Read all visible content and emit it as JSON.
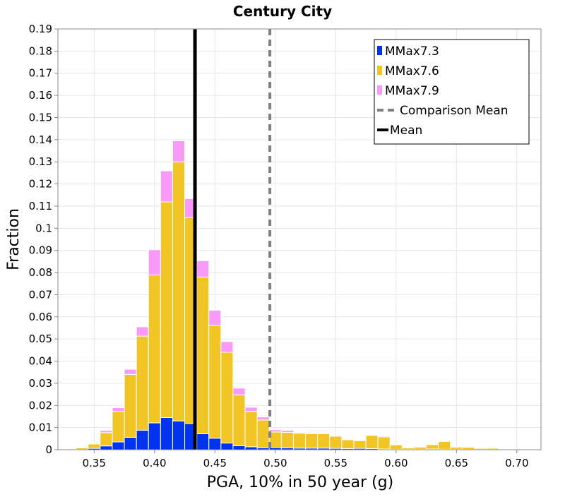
{
  "chart_data": {
    "type": "bar",
    "stacked": true,
    "title": "Century City",
    "xlabel": "PGA, 10% in 50 year (g)",
    "ylabel": "Fraction",
    "xlim": [
      0.32,
      0.72
    ],
    "ylim": [
      0,
      0.19
    ],
    "grid": true,
    "legend_position": "top-right",
    "bin_width": 0.01,
    "x_ticks": [
      "0.35",
      "0.40",
      "0.45",
      "0.50",
      "0.55",
      "0.60",
      "0.65",
      "0.70"
    ],
    "y_ticks": [
      "0",
      "0.01",
      "0.02",
      "0.03",
      "0.04",
      "0.05",
      "0.06",
      "0.07",
      "0.08",
      "0.09",
      "0.1",
      "0.11",
      "0.12",
      "0.13",
      "0.14",
      "0.15",
      "0.16",
      "0.17",
      "0.18",
      "0.19"
    ],
    "x": [
      0.33,
      0.34,
      0.35,
      0.36,
      0.37,
      0.38,
      0.39,
      0.4,
      0.41,
      0.42,
      0.43,
      0.44,
      0.45,
      0.46,
      0.47,
      0.48,
      0.49,
      0.5,
      0.51,
      0.52,
      0.53,
      0.54,
      0.55,
      0.56,
      0.57,
      0.58,
      0.59,
      0.6,
      0.61,
      0.62,
      0.63,
      0.64,
      0.65,
      0.66,
      0.67,
      0.68,
      0.69,
      0.7
    ],
    "series": [
      {
        "name": "MMax7.3",
        "color": "#0033ee",
        "values": [
          0.0,
          0.0001,
          0.0006,
          0.0017,
          0.0035,
          0.0056,
          0.0088,
          0.0121,
          0.0145,
          0.013,
          0.0118,
          0.0072,
          0.0052,
          0.003,
          0.0018,
          0.0013,
          0.0009,
          0.001,
          0.0008,
          0.0007,
          0.0007,
          0.0007,
          0.0006,
          0.0005,
          0.0006,
          0.0005,
          0.0003,
          0.0002,
          0.0002,
          0.0002,
          0.0003,
          0.0002,
          0.0002,
          0.0001,
          0.0001,
          0.0001,
          0.0001,
          0.0001
        ]
      },
      {
        "name": "MMax7.6",
        "color": "#f2c526",
        "values": [
          0.0003,
          0.0007,
          0.002,
          0.006,
          0.0138,
          0.0284,
          0.0425,
          0.0668,
          0.0974,
          0.117,
          0.093,
          0.0708,
          0.051,
          0.041,
          0.023,
          0.016,
          0.0125,
          0.007,
          0.007,
          0.0067,
          0.0065,
          0.0065,
          0.0055,
          0.004,
          0.0035,
          0.006,
          0.0055,
          0.002,
          0.0006,
          0.001,
          0.002,
          0.0035,
          0.001,
          0.001,
          0.0005,
          0.0006,
          0.0002,
          0.0002
        ]
      },
      {
        "name": "MMax7.9",
        "color": "#f99af8",
        "values": [
          0.0,
          0.0001,
          0.0003,
          0.001,
          0.0017,
          0.0023,
          0.0042,
          0.0114,
          0.014,
          0.0095,
          0.0086,
          0.0073,
          0.0068,
          0.0048,
          0.003,
          0.0019,
          0.0014,
          0.001,
          0.0009,
          0.0004,
          0.0003,
          0.0003,
          0.0001,
          0.0002,
          0.0003,
          0.0003,
          0.0004,
          0.0002,
          0.0002,
          0.0003,
          0.0002,
          0.0003,
          0.0002,
          0.0002,
          0.0001,
          0.0001,
          0.0001,
          0.0001
        ]
      }
    ],
    "lines": [
      {
        "name": "Comparison Mean",
        "x": 0.4955,
        "color": "#808080",
        "style": "dashed"
      },
      {
        "name": "Mean",
        "x": 0.4335,
        "color": "#000000",
        "style": "solid"
      }
    ]
  }
}
